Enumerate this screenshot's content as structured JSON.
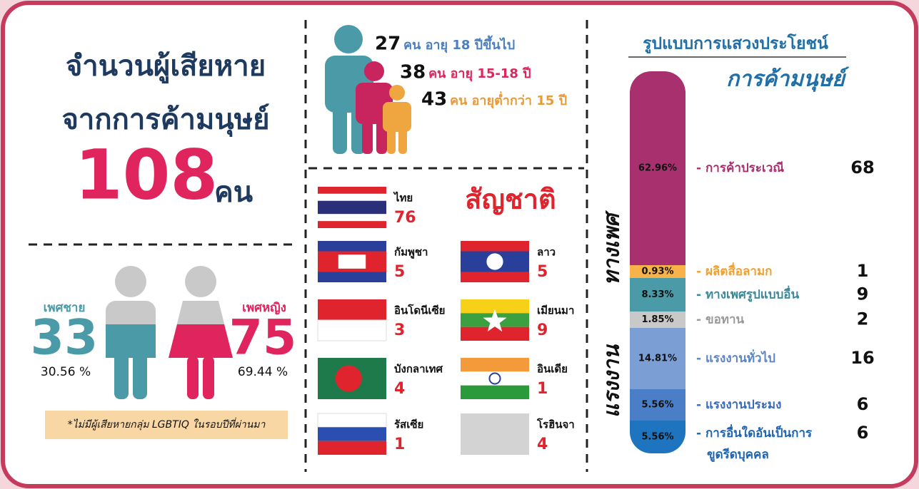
{
  "summary": {
    "title_line1": "จำนวนผู้เสียหาย",
    "title_line2": "จากการค้ามนุษย์",
    "total": 108,
    "unit": "คน"
  },
  "ages": [
    {
      "count": 27,
      "label": "คน อายุ 18 ปีขึ้นไป"
    },
    {
      "count": 38,
      "label": "คน อายุ 15-18 ปี"
    },
    {
      "count": 43,
      "label": "คน อายุต่ำกว่า 15 ปี"
    }
  ],
  "gender": {
    "male": {
      "label": "เพศชาย",
      "count": 33,
      "percent": "30.56 %"
    },
    "female": {
      "label": "เพศหญิง",
      "count": 75,
      "percent": "69.44 %"
    }
  },
  "note": "*ไม่มีผู้เสียหายกลุ่ม LGBTIQ ในรอบปีที่ผ่านมา",
  "nationality": {
    "title": "สัญชาติ",
    "items": [
      {
        "name": "ไทย",
        "count": 76
      },
      {
        "name": "กัมพูชา",
        "count": 5
      },
      {
        "name": "ลาว",
        "count": 5
      },
      {
        "name": "อินโดนีเซีย",
        "count": 3
      },
      {
        "name": "เมียนมา",
        "count": 9
      },
      {
        "name": "บังกลาเทศ",
        "count": 4
      },
      {
        "name": "อินเดีย",
        "count": 1
      },
      {
        "name": "รัสเซีย",
        "count": 1
      },
      {
        "name": "โรฮินจา",
        "count": 4
      }
    ]
  },
  "exploitation": {
    "title": "รูปแบบการแสวงประโยชน์",
    "subtitle": "การค้ามนุษย์",
    "groups": [
      {
        "label": "ทางเพศ"
      },
      {
        "label": "แรงงาน"
      }
    ],
    "segments": [
      {
        "percent": "62.96%",
        "label": [
          "- การค้าประเวณี"
        ],
        "count": 68,
        "color": "#a8306e"
      },
      {
        "percent": "0.93%",
        "label": [
          "- ผลิตสื่อลามก"
        ],
        "count": 1,
        "color": "#f7b34a"
      },
      {
        "percent": "8.33%",
        "label": [
          "- ทางเพศรูปแบบอื่น"
        ],
        "count": 9,
        "color": "#4a9aa8"
      },
      {
        "percent": "1.85%",
        "label": [
          "- ขอทาน"
        ],
        "count": 2,
        "color": "#c9c9c9"
      },
      {
        "percent": "14.81%",
        "label": [
          "- แรงงานทั่วไป"
        ],
        "count": 16,
        "color": "#7b9fd4"
      },
      {
        "percent": "5.56%",
        "label": [
          "- แรงงานประมง"
        ],
        "count": 6,
        "color": "#4a7fc8"
      },
      {
        "percent": "5.56%",
        "label": [
          "- การอื่นใดอันเป็นการ",
          "ขูดรีดบุคคล"
        ],
        "count": 6,
        "color": "#1f74c0"
      }
    ]
  }
}
